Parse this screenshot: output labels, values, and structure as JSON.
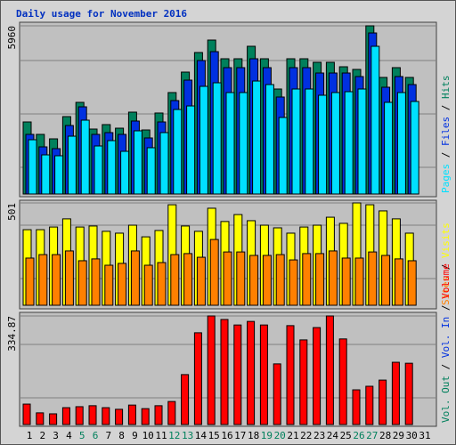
{
  "chart_data": {
    "type": "bar",
    "title": "Daily usage for November 2016",
    "categories": [
      "1",
      "2",
      "3",
      "4",
      "5",
      "6",
      "7",
      "8",
      "9",
      "10",
      "11",
      "12",
      "13",
      "14",
      "15",
      "16",
      "17",
      "18",
      "19",
      "20",
      "21",
      "22",
      "23",
      "24",
      "25",
      "26",
      "27",
      "28",
      "29",
      "30",
      "31"
    ],
    "category_colors": [
      "#000000",
      "#000000",
      "#000000",
      "#000000",
      "#00805c",
      "#00805c",
      "#000000",
      "#000000",
      "#000000",
      "#000000",
      "#000000",
      "#00805c",
      "#00805c",
      "#000000",
      "#000000",
      "#000000",
      "#000000",
      "#000000",
      "#00805c",
      "#00805c",
      "#000000",
      "#000000",
      "#000000",
      "#000000",
      "#000000",
      "#00805c",
      "#00805c",
      "#000000",
      "#000000",
      "#000000",
      "#000000"
    ],
    "panels": [
      {
        "ylim": [
          0,
          5960
        ],
        "yticks": [
          5960
        ],
        "series": [
          {
            "name": "Hits",
            "color": "#00805c",
            "values": [
              2554,
              2113,
              1955,
              2743,
              3248,
              2302,
              2460,
              2333,
              2901,
              2270,
              2870,
              3595,
              4320,
              5014,
              5455,
              4793,
              4793,
              5235,
              4793,
              3721,
              4793,
              4793,
              4667,
              4667,
              4509,
              4415,
              5960,
              4131,
              4478,
              4131,
              null
            ]
          },
          {
            "name": "Files",
            "color": "#0030e0",
            "values": [
              2113,
              1671,
              1608,
              2428,
              3090,
              2113,
              2176,
              2113,
              2586,
              1987,
              2554,
              3311,
              4036,
              4730,
              5045,
              4478,
              4478,
              4793,
              4478,
              3437,
              4478,
              4478,
              4288,
              4288,
              4288,
              4162,
              5707,
              3784,
              4162,
              3878,
              null
            ]
          },
          {
            "name": "Pages",
            "color": "#00e0ff",
            "values": [
              1923,
              1387,
              1356,
              2049,
              2617,
              1703,
              1892,
              1513,
              2239,
              1640,
              2176,
              2995,
              3121,
              3815,
              3941,
              3595,
              3595,
              4004,
              3878,
              2712,
              3721,
              3721,
              3500,
              3595,
              3626,
              3721,
              5234,
              3248,
              3595,
              3279,
              null
            ]
          }
        ]
      },
      {
        "ylim": [
          0,
          501
        ],
        "yticks": [
          501
        ],
        "series": [
          {
            "name": "Visits",
            "color": "#ffff00",
            "values": [
              370,
              370,
              383,
              423,
              383,
              388,
              362,
              353,
              392,
              335,
              366,
              492,
              388,
              362,
              475,
              410,
              444,
              414,
              392,
              379,
              353,
              383,
              392,
              431,
              401,
              501,
              492,
              462,
              423,
              353,
              null
            ]
          },
          {
            "name": "Sites",
            "color": "#ff8000",
            "values": [
              231,
              248,
              248,
              266,
              218,
              227,
              196,
              205,
              266,
              196,
              209,
              248,
              253,
              235,
              322,
              261,
              261,
              244,
              244,
              248,
              222,
              253,
              253,
              266,
              231,
              231,
              261,
              244,
              227,
              218,
              null
            ]
          }
        ]
      },
      {
        "ylim": [
          0,
          334.87
        ],
        "yticks": [
          334.87
        ],
        "series": [
          {
            "name": "Volume",
            "color": "#ff0000",
            "values": [
              63,
              36,
              33,
              52,
              55,
              58,
              52,
              47,
              60,
              49,
              58,
              71,
              154,
              283,
              334.87,
              324,
              307,
              318,
              307,
              187,
              305,
              261,
              299,
              334.87,
              264,
              107,
              118,
              137,
              192,
              189,
              null
            ]
          }
        ],
        "legend_extra": [
          {
            "name": "Vol. In",
            "color": "#0030e0"
          },
          {
            "name": "Vol. Out",
            "color": "#00805c"
          }
        ]
      }
    ]
  }
}
